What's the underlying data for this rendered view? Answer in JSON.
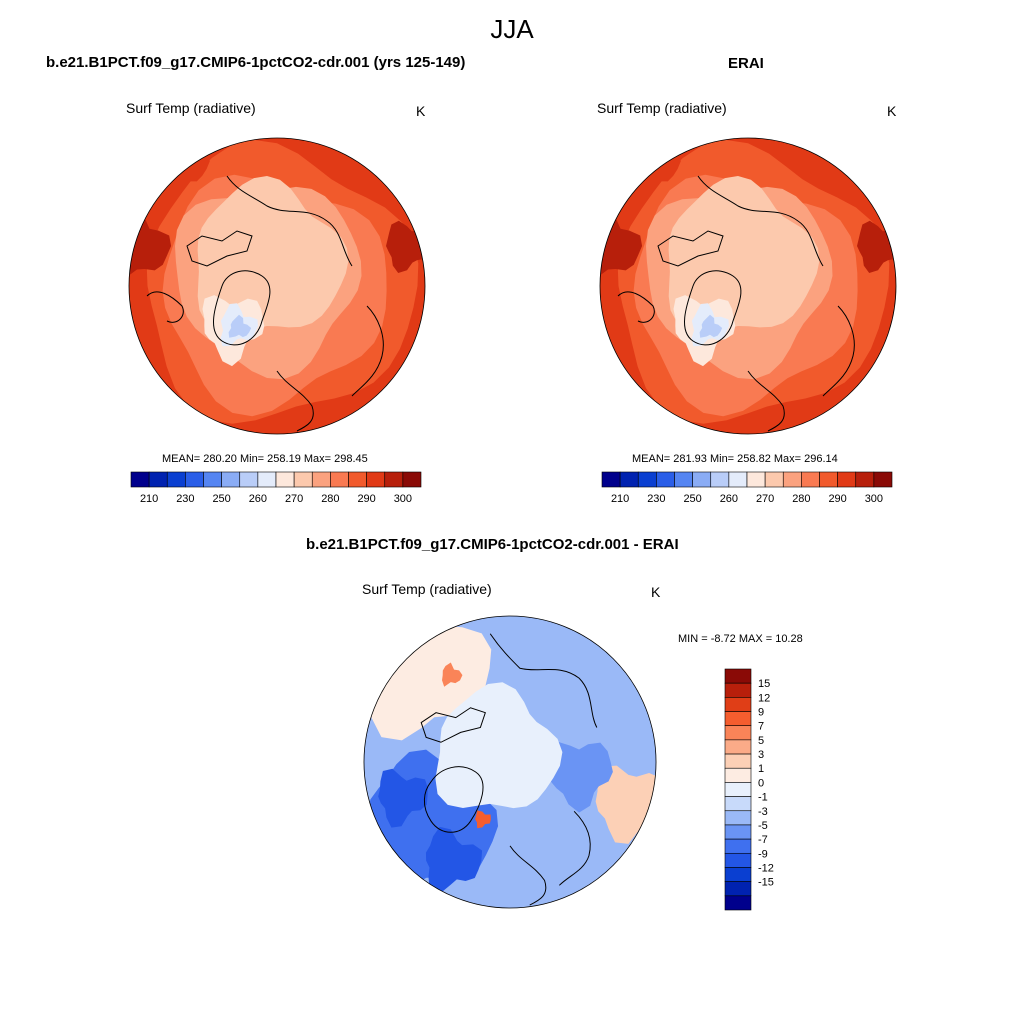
{
  "page_title": "JJA",
  "colors": {
    "temp_scale": [
      "#00008c",
      "#0022b0",
      "#0a3fd1",
      "#2a5ee8",
      "#5585f2",
      "#8aacf5",
      "#b9cdf8",
      "#e4ecfb",
      "#fde8dc",
      "#fcc9ad",
      "#fba27f",
      "#f97a52",
      "#f15a2c",
      "#e13a16",
      "#b71f0b",
      "#8a0a06"
    ],
    "diff_scale": [
      "#00008c",
      "#0022b0",
      "#0a3fd1",
      "#2356e6",
      "#3f70ef",
      "#6a94f4",
      "#9ab9f7",
      "#c8dafa",
      "#e8f0fc",
      "#fdece2",
      "#fcd0b6",
      "#fbab88",
      "#fa8458",
      "#f55d2e",
      "#e03e17",
      "#b81f0b",
      "#8a0a06"
    ],
    "coast": "#000000"
  },
  "panels": [
    {
      "id": "model",
      "title": "b.e21.B1PCT.f09_g17.CMIP6-1pctCO2-cdr.001 (yrs 125-149)",
      "variable": "Surf Temp (radiative)",
      "units": "K",
      "stats_text": "MEAN= 280.20  Min= 258.19  Max= 298.45",
      "mean": 280.2,
      "min": 258.19,
      "max": 298.45,
      "colorbar_ticks": [
        "210",
        "230",
        "250",
        "260",
        "270",
        "280",
        "290",
        "300"
      ]
    },
    {
      "id": "obs",
      "title": "ERAI",
      "variable": "Surf Temp (radiative)",
      "units": "K",
      "stats_text": "MEAN= 281.93  Min= 258.82  Max= 296.14",
      "mean": 281.93,
      "min": 258.82,
      "max": 296.14,
      "colorbar_ticks": [
        "210",
        "230",
        "250",
        "260",
        "270",
        "280",
        "290",
        "300"
      ]
    },
    {
      "id": "diff",
      "title": "b.e21.B1PCT.f09_g17.CMIP6-1pctCO2-cdr.001 - ERAI",
      "variable": "Surf Temp (radiative)",
      "units": "K",
      "stats_text": "MIN =  -8.72 MAX =  10.28",
      "min": -8.72,
      "max": 10.28,
      "colorbar_ticks": [
        "15",
        "12",
        "9",
        "7",
        "5",
        "3",
        "1",
        "0",
        "-1",
        "-3",
        "-5",
        "-7",
        "-9",
        "-12",
        "-15"
      ]
    }
  ]
}
